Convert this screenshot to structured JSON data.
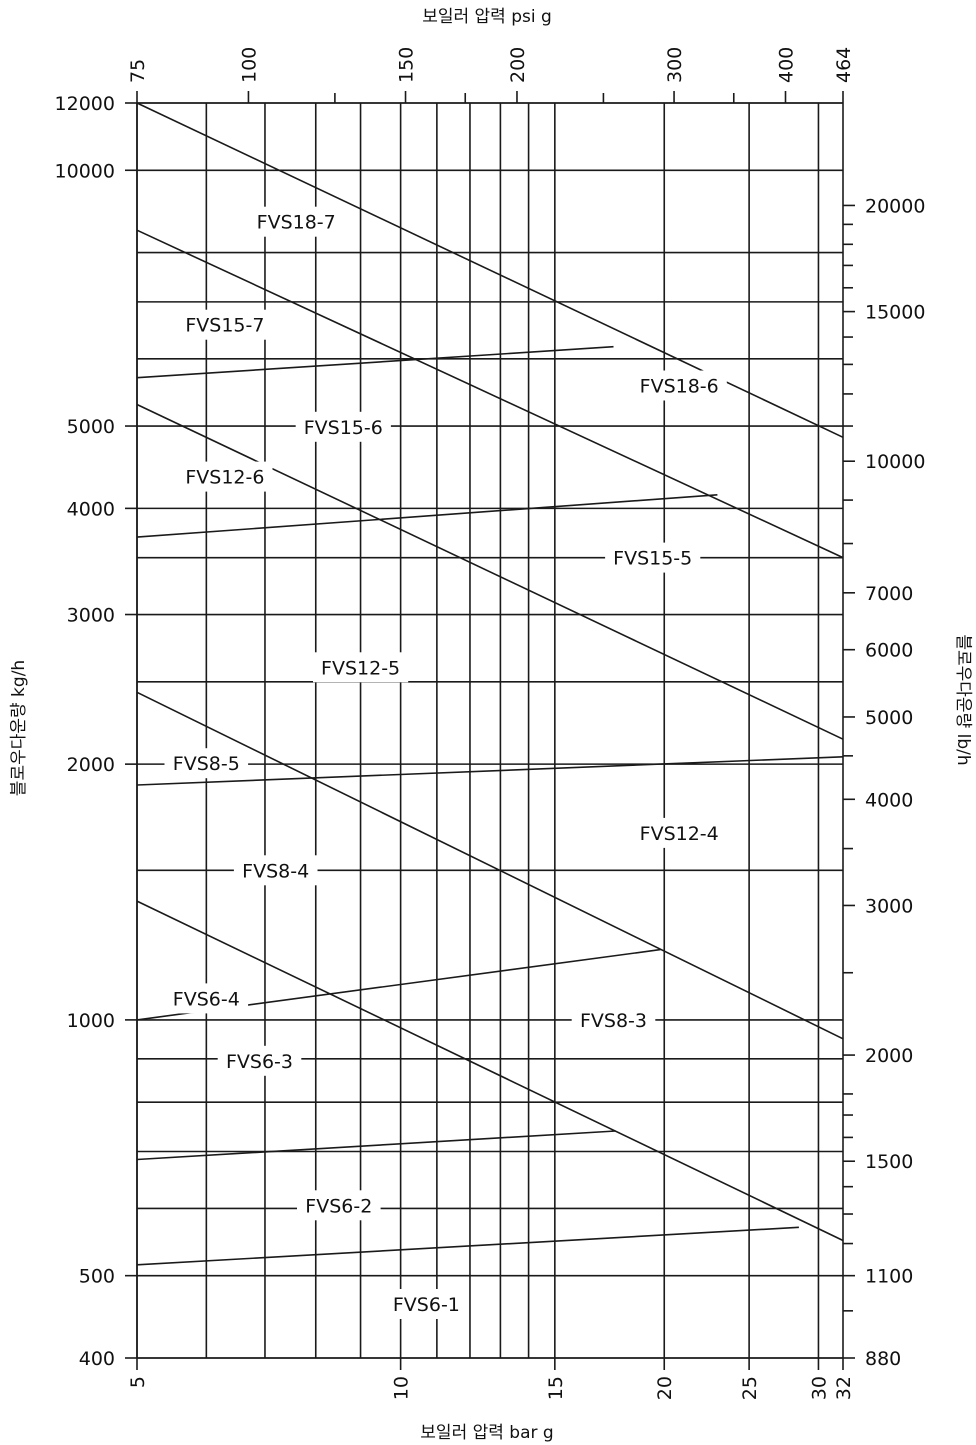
{
  "chart_data": {
    "type": "line",
    "title": "",
    "axes": {
      "x_bottom": {
        "label": "보일러 압력 bar g",
        "scale": "log",
        "range": [
          5,
          32
        ],
        "ticks": [
          5,
          10,
          15,
          20,
          25,
          30,
          32
        ],
        "labels": [
          "5",
          "10",
          "15",
          "20",
          "25",
          "30",
          "32"
        ]
      },
      "x_top": {
        "label": "보일러 압력 psi g",
        "scale": "log",
        "range": [
          75,
          464
        ],
        "ticks": [
          75,
          100,
          150,
          200,
          300,
          400,
          464
        ],
        "labels": [
          "75",
          "100",
          "150",
          "200",
          "300",
          "400",
          "464"
        ]
      },
      "y_left": {
        "label": "블로우다운량 kg/h",
        "scale": "log",
        "range": [
          400,
          12000
        ],
        "ticks": [
          400,
          500,
          1000,
          2000,
          3000,
          4000,
          5000,
          10000,
          12000
        ],
        "labels": [
          "400",
          "500",
          "1000",
          "2000",
          "3000",
          "4000",
          "5000",
          "10000",
          "12000"
        ]
      },
      "y_right": {
        "label": "블로우다운량 lb/h",
        "scale": "log",
        "range": [
          880,
          26400
        ],
        "ticks": [
          880,
          1100,
          1500,
          2000,
          3000,
          4000,
          5000,
          6000,
          7000,
          10000,
          15000,
          20000
        ],
        "labels": [
          "880",
          "1100",
          "1500",
          "2000",
          "3000",
          "4000",
          "5000",
          "6000",
          "7000",
          "10000",
          "15000",
          "20000"
        ]
      }
    },
    "grid": {
      "vertical_bar": [
        5,
        6,
        7,
        8,
        9,
        10,
        11,
        12,
        13,
        14,
        15,
        20,
        25,
        30
      ],
      "horizontal_kgh": [
        400,
        500,
        600,
        700,
        800,
        900,
        1000,
        1500,
        2000,
        2500,
        3000,
        3500,
        4000,
        5000,
        6000,
        7000,
        8000,
        10000,
        12000
      ],
      "right_minor_lbh": [
        1000,
        1200,
        1300,
        1400,
        1600,
        1700,
        1800,
        2500,
        3500,
        4500,
        8000,
        9000,
        11000,
        12000,
        13000,
        14000,
        16000,
        17000,
        18000,
        19000
      ]
    },
    "series": [
      {
        "name": "",
        "x": [
          5,
          32
        ],
        "y": [
          12000,
          4850
        ]
      },
      {
        "name": "",
        "x": [
          5,
          32
        ],
        "y": [
          8500,
          3500
        ]
      },
      {
        "name": "",
        "x": [
          5,
          32
        ],
        "y": [
          5300,
          2140
        ]
      },
      {
        "name": "",
        "x": [
          5,
          32
        ],
        "y": [
          2430,
          950
        ]
      },
      {
        "name": "",
        "x": [
          5,
          32
        ],
        "y": [
          1380,
          550
        ]
      },
      {
        "name": "",
        "x": [
          5,
          17.5
        ],
        "y": [
          5700,
          6200
        ]
      },
      {
        "name": "",
        "x": [
          5,
          23
        ],
        "y": [
          3700,
          4150
        ]
      },
      {
        "name": "",
        "x": [
          5,
          32
        ],
        "y": [
          1890,
          2040
        ]
      },
      {
        "name": "",
        "x": [
          5,
          19.8
        ],
        "y": [
          1000,
          1210
        ]
      },
      {
        "name": "",
        "x": [
          5,
          17.6
        ],
        "y": [
          685,
          740
        ]
      },
      {
        "name": "",
        "x": [
          5,
          28.5
        ],
        "y": [
          515,
          570
        ]
      }
    ],
    "annotations": [
      {
        "text": "FVS18-7",
        "x": 7.6,
        "y": 8700
      },
      {
        "text": "FVS15-7",
        "x": 6.3,
        "y": 6580
      },
      {
        "text": "FVS18-6",
        "x": 20.8,
        "y": 5580
      },
      {
        "text": "FVS15-6",
        "x": 8.6,
        "y": 4990
      },
      {
        "text": "FVS12-6",
        "x": 6.3,
        "y": 4360
      },
      {
        "text": "FVS15-5",
        "x": 19.4,
        "y": 3500
      },
      {
        "text": "FVS12-5",
        "x": 9.0,
        "y": 2600
      },
      {
        "text": "FVS8-5",
        "x": 6.0,
        "y": 2005
      },
      {
        "text": "FVS12-4",
        "x": 20.8,
        "y": 1660
      },
      {
        "text": "FVS8-4",
        "x": 7.2,
        "y": 1500
      },
      {
        "text": "FVS6-4",
        "x": 6.0,
        "y": 1060
      },
      {
        "text": "FVS8-3",
        "x": 17.5,
        "y": 1000
      },
      {
        "text": "FVS6-3",
        "x": 6.9,
        "y": 895
      },
      {
        "text": "FVS6-2",
        "x": 8.5,
        "y": 605
      },
      {
        "text": "FVS6-1",
        "x": 10.7,
        "y": 463
      }
    ]
  }
}
